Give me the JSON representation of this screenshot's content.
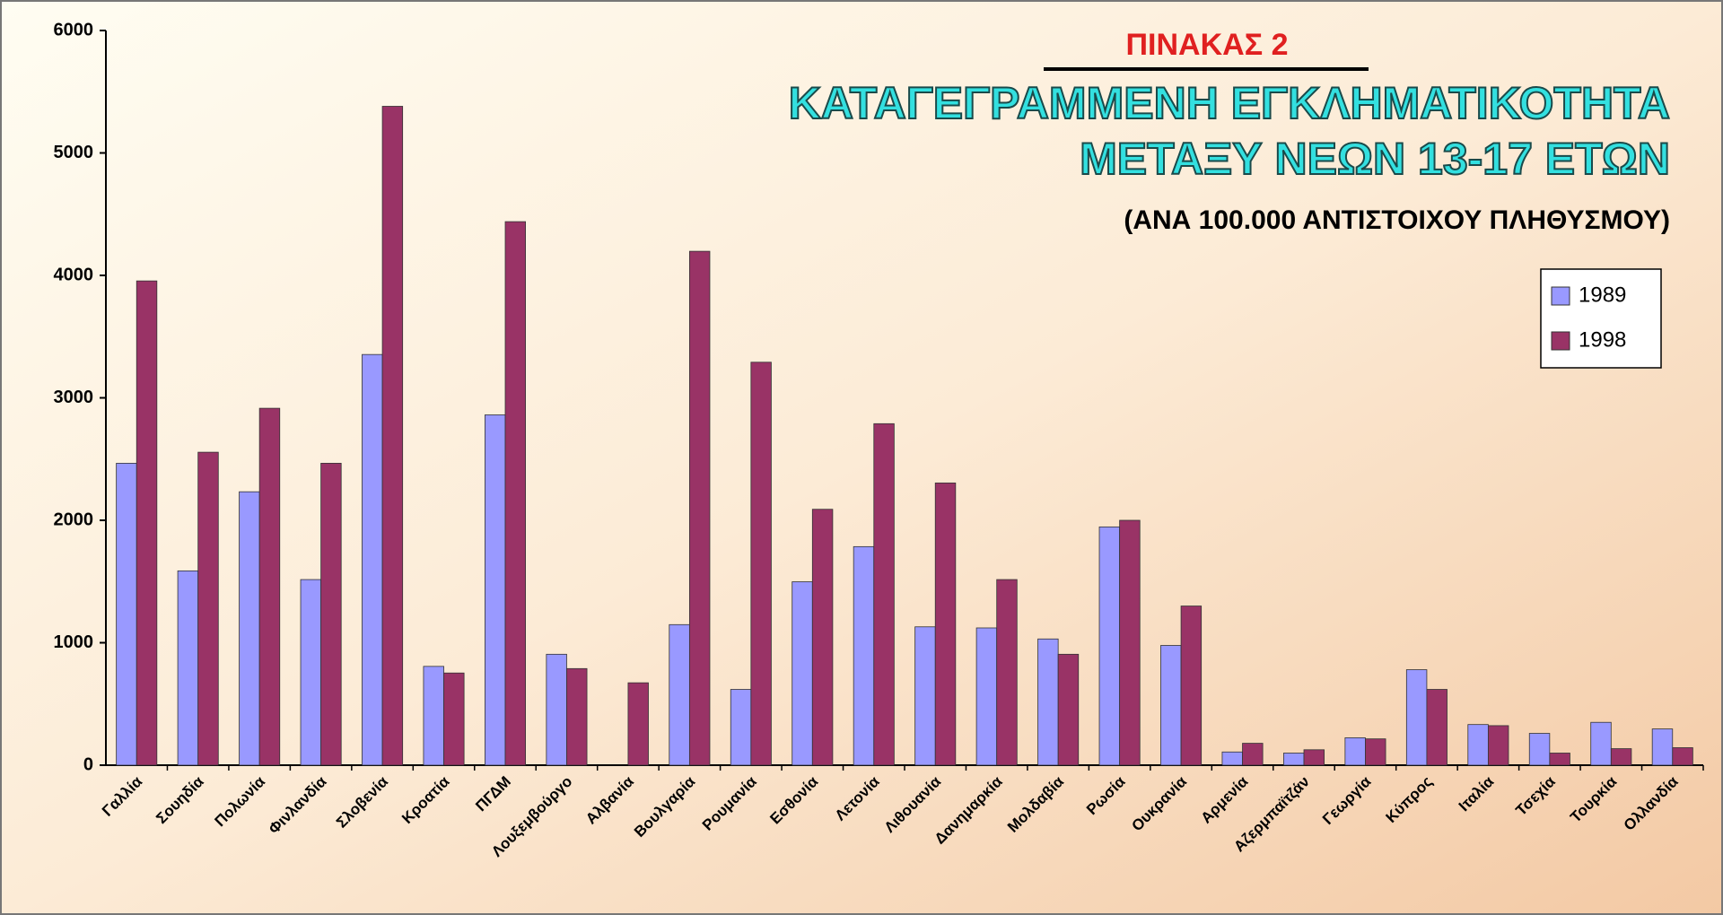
{
  "chart_data": {
    "type": "bar",
    "heading": "ΠΙΝΑΚΑΣ 2",
    "title": [
      "ΚΑΤΑΓΕΓΡΑΜΜΕΝΗ ΕΓΚΛΗΜΑΤΙΚΟΤΗΤΑ",
      "ΜΕΤΑΞΥ ΝΕΩΝ 13-17 ΕΤΩΝ"
    ],
    "subtitle": "(ΑΝΑ 100.000 ΑΝΤΙΣΤΟΙΧΟΥ ΠΛΗΘΥΣΜΟΥ)",
    "categories": [
      "Γαλλία",
      "Σουηδία",
      "Πολωνία",
      "Φινλανδία",
      "Σλοβενία",
      "Κροατία",
      "ΠΓΔΜ",
      "Λουξεμβούργο",
      "Αλβανία",
      "Βουλγαρία",
      "Ρουμανία",
      "Εσθονία",
      "Λετονία",
      "Λιθουανία",
      "Δανημαρκία",
      "Μολδαβία",
      "Ρωσία",
      "Ουκρανία",
      "Αρμενία",
      "Αζερμπαϊτζάν",
      "Γεωργία",
      "Κύπρος",
      "Ιταλία",
      "Τσεχία",
      "Τουρκία",
      "Ολλανδία"
    ],
    "series": [
      {
        "name": "1989",
        "color": "#9999ff",
        "values": [
          2466,
          1587,
          2233,
          1516,
          3354,
          807,
          2861,
          906,
          0,
          1148,
          619,
          1498,
          1785,
          1130,
          1121,
          1031,
          1946,
          978,
          108,
          99,
          224,
          780,
          332,
          260,
          350,
          296
        ]
      },
      {
        "name": "1998",
        "color": "#993366",
        "values": [
          3955,
          2556,
          2915,
          2466,
          5381,
          753,
          4439,
          789,
          673,
          4197,
          3291,
          2090,
          2789,
          2305,
          1516,
          906,
          2000,
          1300,
          179,
          126,
          215,
          619,
          323,
          99,
          135,
          143
        ]
      }
    ],
    "ylim": [
      0,
      6000
    ],
    "yticks": [
      0,
      1000,
      2000,
      3000,
      4000,
      5000,
      6000
    ],
    "legend": "top-right",
    "grid": false
  }
}
